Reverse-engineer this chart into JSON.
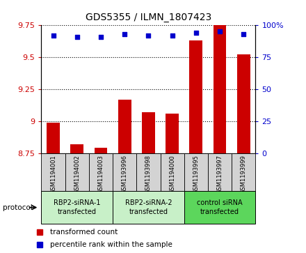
{
  "title": "GDS5355 / ILMN_1807423",
  "samples": [
    "GSM1194001",
    "GSM1194002",
    "GSM1194003",
    "GSM1193996",
    "GSM1193998",
    "GSM1194000",
    "GSM1193995",
    "GSM1193997",
    "GSM1193999"
  ],
  "transformed_counts": [
    8.99,
    8.82,
    8.79,
    9.17,
    9.07,
    9.06,
    9.63,
    9.75,
    9.52
  ],
  "percentile_ranks": [
    92,
    91,
    91,
    93,
    92,
    92,
    94,
    95,
    93
  ],
  "ylim": [
    8.75,
    9.75
  ],
  "yticks": [
    8.75,
    9.0,
    9.25,
    9.5,
    9.75
  ],
  "ytick_labels": [
    "8.75",
    "9",
    "9.25",
    "9.5",
    "9.75"
  ],
  "right_yticks": [
    0,
    25,
    50,
    75,
    100
  ],
  "right_ytick_labels": [
    "0",
    "25",
    "50",
    "75",
    "100%"
  ],
  "bar_color": "#cc0000",
  "dot_color": "#0000cc",
  "bar_width": 0.55,
  "groups": [
    {
      "label": "RBP2-siRNA-1\ntransfected",
      "start": 0,
      "end": 3,
      "color": "#c8f0c8"
    },
    {
      "label": "RBP2-siRNA-2\ntransfected",
      "start": 3,
      "end": 6,
      "color": "#c8f0c8"
    },
    {
      "label": "control siRNA\ntransfected",
      "start": 6,
      "end": 9,
      "color": "#5cd65c"
    }
  ],
  "protocol_label": "protocol",
  "legend_bar_label": "transformed count",
  "legend_dot_label": "percentile rank within the sample",
  "tick_color_left": "#cc0000",
  "tick_color_right": "#0000cc",
  "sample_bg_color": "#d3d3d3",
  "plot_bg_color": "#ffffff",
  "fig_bg_color": "#ffffff"
}
